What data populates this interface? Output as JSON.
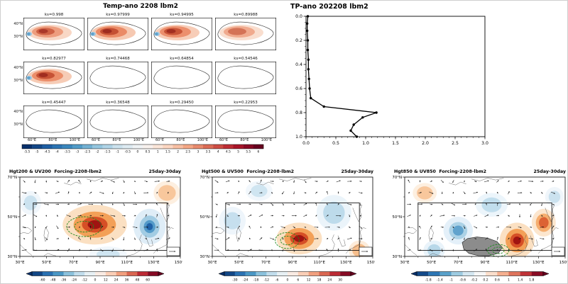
{
  "page": {
    "background": "#ffffff"
  },
  "chart_data": [
    {
      "type": "heatmap",
      "title": "Temp-ano 2208 lbm2",
      "description": "Temperature anomaly small-multiple maps over the Tibetan Plateau at model sigma levels",
      "lat_ticks": [
        "40°N",
        "30°N"
      ],
      "lon_ticks": [
        "60°E",
        "80°E",
        "100°E"
      ],
      "colorbar_ticks": [
        "-5.5",
        "-5",
        "-4.5",
        "-4",
        "-3.5",
        "-3",
        "-2.5",
        "-2",
        "-1.5",
        "-1",
        "-0.5",
        "0",
        "0.5",
        "1",
        "1.5",
        "2",
        "2.5",
        "3",
        "3.5",
        "4",
        "4.5",
        "5",
        "5.5",
        "6"
      ],
      "colors": {
        "warm_core": "#9e2b20",
        "warm_mid": "#ea8a66",
        "warm_light": "#f6c9b2",
        "cool_spot": "#5b9ec9"
      },
      "panels": [
        {
          "label": "ks=0.998",
          "intensity": 0.75,
          "has_blue": true
        },
        {
          "label": "ks=0.97999",
          "intensity": 1.0,
          "has_blue": true
        },
        {
          "label": "ks=0.94995",
          "intensity": 0.92,
          "has_blue": true
        },
        {
          "label": "ks=0.89988",
          "intensity": 0.62,
          "has_blue": false
        },
        {
          "label": "ks=0.82977",
          "intensity": 0.95,
          "has_blue": true
        },
        {
          "label": "ks=0.74468",
          "intensity": 0,
          "has_blue": false
        },
        {
          "label": "ks=0.64854",
          "intensity": 0,
          "has_blue": false
        },
        {
          "label": "ks=0.54546",
          "intensity": 0,
          "has_blue": false
        },
        {
          "label": "ks=0.45447",
          "intensity": 0,
          "has_blue": false
        },
        {
          "label": "ks=0.36548",
          "intensity": 0,
          "has_blue": false
        },
        {
          "label": "ks=0.29450",
          "intensity": 0,
          "has_blue": false
        },
        {
          "label": "ks=0.22953",
          "intensity": 0,
          "has_blue": false
        }
      ]
    },
    {
      "type": "line",
      "title": "TP-ano 202208 lbm2",
      "xlim": [
        0.0,
        3.0
      ],
      "ylim": [
        0.0,
        1.0
      ],
      "y_axis_downward": true,
      "x_ticks": [
        "0.0",
        "0.5",
        "1.0",
        "1.5",
        "2.0",
        "2.5",
        "3.0"
      ],
      "y_ticks": [
        "0.0",
        "0.2",
        "0.4",
        "0.6",
        "0.8",
        "1.0"
      ],
      "x": [
        0.03,
        0.02,
        0.02,
        0.03,
        0.03,
        0.04,
        0.04,
        0.05,
        0.06,
        0.08,
        0.3,
        1.18,
        0.95,
        0.8,
        0.75,
        0.85
      ],
      "y": [
        0.0,
        0.06,
        0.12,
        0.2,
        0.28,
        0.36,
        0.44,
        0.52,
        0.6,
        0.68,
        0.75,
        0.8,
        0.84,
        0.9,
        0.95,
        1.0
      ]
    },
    {
      "type": "heatmap",
      "title": "Hgt200 & UV200  Forcing-2208-lbm2",
      "tag": "25day-30day",
      "lon_ticks": [
        "30°E",
        "50°E",
        "70°E",
        "90°E",
        "110°E",
        "130°E",
        "150°E"
      ],
      "lat_ticks": [
        "70°N",
        "50°N",
        "30°N"
      ],
      "colorbar_ticks": [
        "-60",
        "-48",
        "-36",
        "-24",
        "-12",
        "0",
        "12",
        "24",
        "36",
        "48",
        "60"
      ],
      "box": {
        "lon_min": 40,
        "lon_max": 140,
        "lat_min": 33,
        "lat_max": 57
      },
      "gray_mask": false,
      "features": [
        {
          "kind": "warm",
          "lon": 86,
          "lat": 46,
          "rlon": 24,
          "rlat": 10,
          "strength": 1
        },
        {
          "kind": "cool",
          "lon": 127,
          "lat": 45,
          "rlon": 12,
          "rlat": 9,
          "strength": 0.85
        },
        {
          "kind": "cool",
          "lon": 38,
          "lat": 57,
          "rlon": 8,
          "rlat": 6,
          "strength": 0.35
        },
        {
          "kind": "warm",
          "lon": 140,
          "lat": 62,
          "rlon": 10,
          "rlat": 6,
          "strength": 0.4
        },
        {
          "kind": "cool",
          "lon": 96,
          "lat": 31,
          "rlon": 14,
          "rlat": 4,
          "strength": 0.3
        },
        {
          "kind": "green",
          "lon": 78,
          "lat": 45,
          "rlon": 13,
          "rlat": 5
        }
      ]
    },
    {
      "type": "heatmap",
      "title": "Hgt500 & UV500  Forcing-2208-lbm2",
      "tag": "25day-30day",
      "lon_ticks": [
        "30°E",
        "50°E",
        "70°E",
        "90°E",
        "110°E",
        "130°E",
        "150°E"
      ],
      "lat_ticks": [
        "70°N",
        "50°N",
        "30°N"
      ],
      "colorbar_ticks": [
        "-30",
        "-24",
        "-18",
        "-12",
        "-6",
        "0",
        "6",
        "12",
        "18",
        "24",
        "30"
      ],
      "box": {
        "lon_min": 40,
        "lon_max": 140,
        "lat_min": 33,
        "lat_max": 57
      },
      "gray_mask": false,
      "features": [
        {
          "kind": "warm",
          "lon": 95,
          "lat": 39,
          "rlon": 17,
          "rlat": 8,
          "strength": 1
        },
        {
          "kind": "cool",
          "lon": 121,
          "lat": 52,
          "rlon": 13,
          "rlat": 9,
          "strength": 0.5
        },
        {
          "kind": "cool",
          "lon": 45,
          "lat": 48,
          "rlon": 10,
          "rlat": 7,
          "strength": 0.4
        },
        {
          "kind": "warm",
          "lon": 140,
          "lat": 33,
          "rlon": 8,
          "rlat": 5,
          "strength": 0.5
        },
        {
          "kind": "cool",
          "lon": 65,
          "lat": 63,
          "rlon": 10,
          "rlat": 5,
          "strength": 0.3
        },
        {
          "kind": "green",
          "lon": 86,
          "lat": 38,
          "rlon": 9,
          "rlat": 4
        }
      ]
    },
    {
      "type": "heatmap",
      "title": "Hgt850 & UV850  Forcing-2208-lbm2",
      "tag": "25day-30day",
      "lon_ticks": [
        "30°E",
        "50°E",
        "70°E",
        "90°E",
        "110°E",
        "130°E",
        "150°E"
      ],
      "lat_ticks": [
        "70°N",
        "50°N",
        "30°N"
      ],
      "colorbar_ticks": [
        "-1.8",
        "-1.4",
        "-1",
        "-0.6",
        "-0.2",
        "0.2",
        "0.6",
        "1",
        "1.4",
        "1.8"
      ],
      "box": {
        "lon_min": 40,
        "lon_max": 140,
        "lat_min": 33,
        "lat_max": 57
      },
      "gray_mask": true,
      "features": [
        {
          "kind": "warm",
          "lon": 114,
          "lat": 38,
          "rlon": 13,
          "rlat": 9,
          "strength": 1
        },
        {
          "kind": "warm",
          "lon": 134,
          "lat": 47,
          "rlon": 9,
          "rlat": 7,
          "strength": 0.7
        },
        {
          "kind": "cool",
          "lon": 70,
          "lat": 43,
          "rlon": 11,
          "rlat": 7,
          "strength": 0.7
        },
        {
          "kind": "cool",
          "lon": 95,
          "lat": 56,
          "rlon": 12,
          "rlat": 6,
          "strength": 0.45
        },
        {
          "kind": "cool",
          "lon": 52,
          "lat": 33,
          "rlon": 8,
          "rlat": 5,
          "strength": 0.55
        },
        {
          "kind": "warm",
          "lon": 45,
          "lat": 62,
          "rlon": 9,
          "rlat": 5,
          "strength": 0.4
        },
        {
          "kind": "cool",
          "lon": 142,
          "lat": 60,
          "rlon": 7,
          "rlat": 5,
          "strength": 0.35
        },
        {
          "kind": "green",
          "lon": 100,
          "lat": 33,
          "rlon": 8,
          "rlat": 3
        }
      ]
    }
  ]
}
